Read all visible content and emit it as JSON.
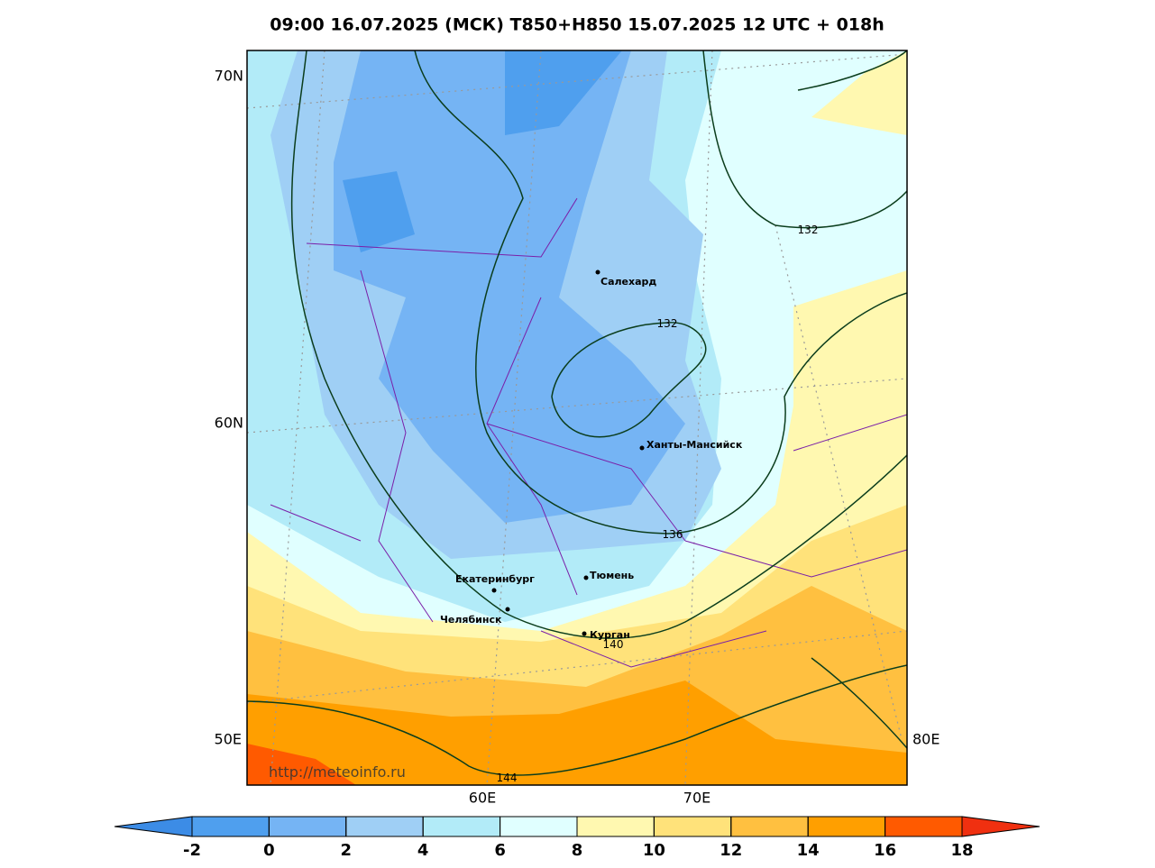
{
  "title": "09:00 16.07.2025 (МСК) T850+H850 15.07.2025 12 UTC + 018h",
  "axis_labels": {
    "left": [
      "70N",
      "60N",
      "50E"
    ],
    "bottom": [
      "60E",
      "70E"
    ],
    "right": [
      "80E"
    ]
  },
  "cities": [
    "Салехард",
    "Ханты-Мансийск",
    "Тюмень",
    "Екатеринбург",
    "Челябинск",
    "Курган"
  ],
  "contour_labels": [
    "132",
    "132",
    "136",
    "140",
    "144"
  ],
  "watermark": "http://meteoinfo.ru",
  "colorbar": {
    "ticks": [
      -2,
      0,
      2,
      4,
      6,
      8,
      10,
      12,
      14,
      16,
      18
    ],
    "colors": [
      "#4f9fee",
      "#75b4f4",
      "#9fcff5",
      "#b2ebf8",
      "#e0ffff",
      "#fff8b0",
      "#ffe27a",
      "#ffc040",
      "#ff9f00",
      "#ff5a00"
    ],
    "under_color": "#3c8ce6",
    "over_color": "#f03010"
  }
}
